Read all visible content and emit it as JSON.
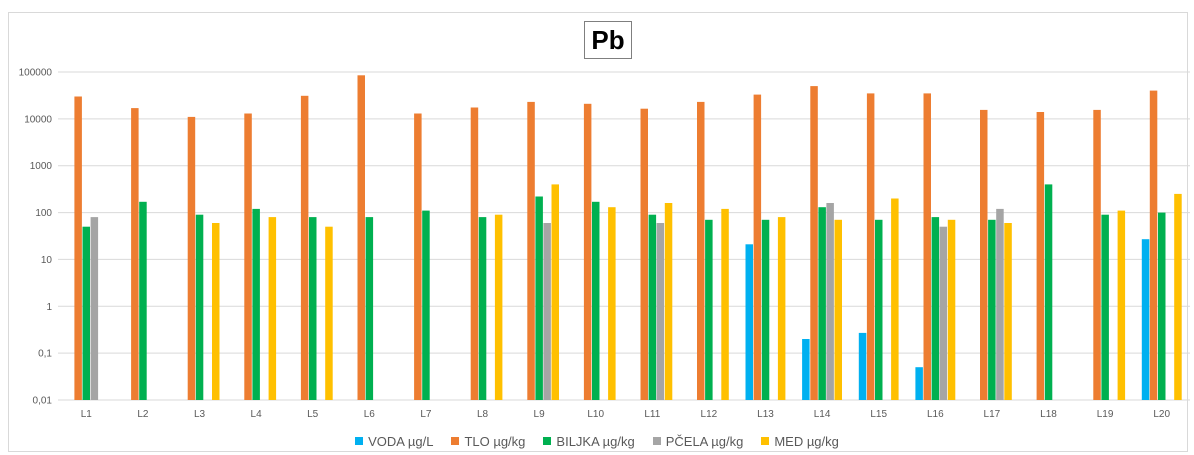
{
  "chart_data": {
    "type": "bar",
    "title": "Pb",
    "y_scale": "log",
    "ylim": [
      0.01,
      100000
    ],
    "y_ticks": [
      "0,01",
      "0,1",
      "1",
      "10",
      "100",
      "1000",
      "10000",
      "100000"
    ],
    "grid": true,
    "legend_position": "bottom",
    "categories": [
      "L1",
      "L2",
      "L3",
      "L4",
      "L5",
      "L6",
      "L7",
      "L8",
      "L9",
      "L10",
      "L11",
      "L12",
      "L13",
      "L14",
      "L15",
      "L16",
      "L17",
      "L18",
      "L19",
      "L20"
    ],
    "series": [
      {
        "name": "VODA µg/L",
        "color": "#00b0f0",
        "values": [
          null,
          null,
          null,
          null,
          null,
          null,
          null,
          null,
          null,
          null,
          null,
          null,
          21,
          0.2,
          0.27,
          0.05,
          null,
          null,
          null,
          27
        ]
      },
      {
        "name": "TLO µg/kg",
        "color": "#ed7d31",
        "values": [
          30000,
          17000,
          11000,
          13000,
          31000,
          85000,
          13000,
          17500,
          23000,
          21000,
          16500,
          23000,
          33000,
          50000,
          35000,
          35000,
          15500,
          14000,
          15500,
          40000
        ]
      },
      {
        "name": "BILJKA µg/kg",
        "color": "#00b050",
        "values": [
          50,
          170,
          90,
          120,
          80,
          80,
          110,
          80,
          220,
          170,
          90,
          70,
          70,
          130,
          70,
          80,
          70,
          400,
          90,
          100
        ]
      },
      {
        "name": "PČELA µg/kg",
        "color": "#a5a5a5",
        "values": [
          80,
          null,
          null,
          null,
          null,
          null,
          null,
          null,
          60,
          null,
          60,
          null,
          null,
          160,
          null,
          50,
          120,
          null,
          null,
          null
        ]
      },
      {
        "name": "MED µg/kg",
        "color": "#ffc000",
        "values": [
          null,
          null,
          60,
          80,
          50,
          null,
          null,
          90,
          400,
          130,
          160,
          120,
          80,
          70,
          200,
          70,
          60,
          null,
          110,
          250
        ]
      }
    ]
  }
}
